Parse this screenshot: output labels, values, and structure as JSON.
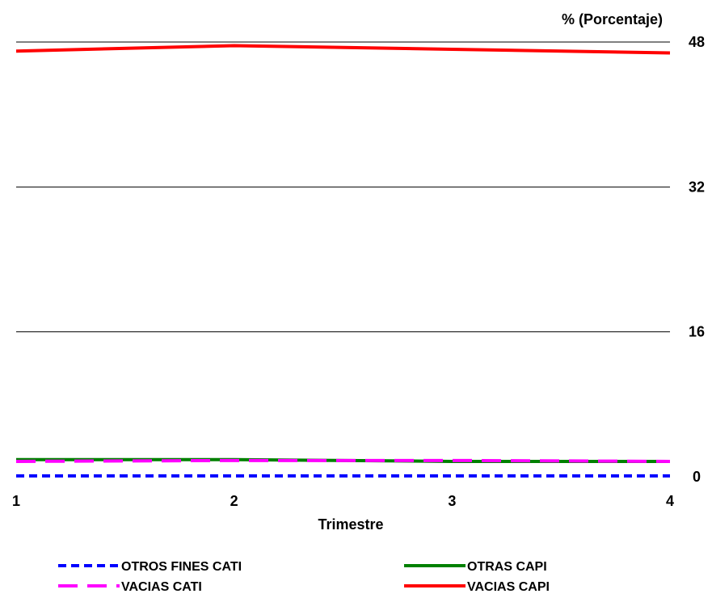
{
  "chart_data": {
    "type": "line",
    "title": "",
    "xlabel": "Trimestre",
    "ylabel": "% (Porcentaje)",
    "x": [
      1,
      2,
      3,
      4
    ],
    "ylim": [
      0,
      48
    ],
    "yticks": [
      0,
      16,
      32,
      48
    ],
    "grid": true,
    "legend_position": "bottom",
    "series": [
      {
        "name": "OTROS FINES CATI",
        "values": [
          0.1,
          0.1,
          0.1,
          0.1
        ],
        "color": "#0000ff",
        "style": "short-dash"
      },
      {
        "name": "OTRAS CAPI",
        "values": [
          1.9,
          1.9,
          1.7,
          1.7
        ],
        "color": "#008000",
        "style": "solid"
      },
      {
        "name": "VACIAS CATI",
        "values": [
          1.7,
          1.8,
          1.8,
          1.7
        ],
        "color": "#ff00ff",
        "style": "long-dash"
      },
      {
        "name": "VACIAS CAPI",
        "values": [
          47.0,
          47.6,
          47.2,
          46.8
        ],
        "color": "#ff0000",
        "style": "solid"
      }
    ]
  }
}
